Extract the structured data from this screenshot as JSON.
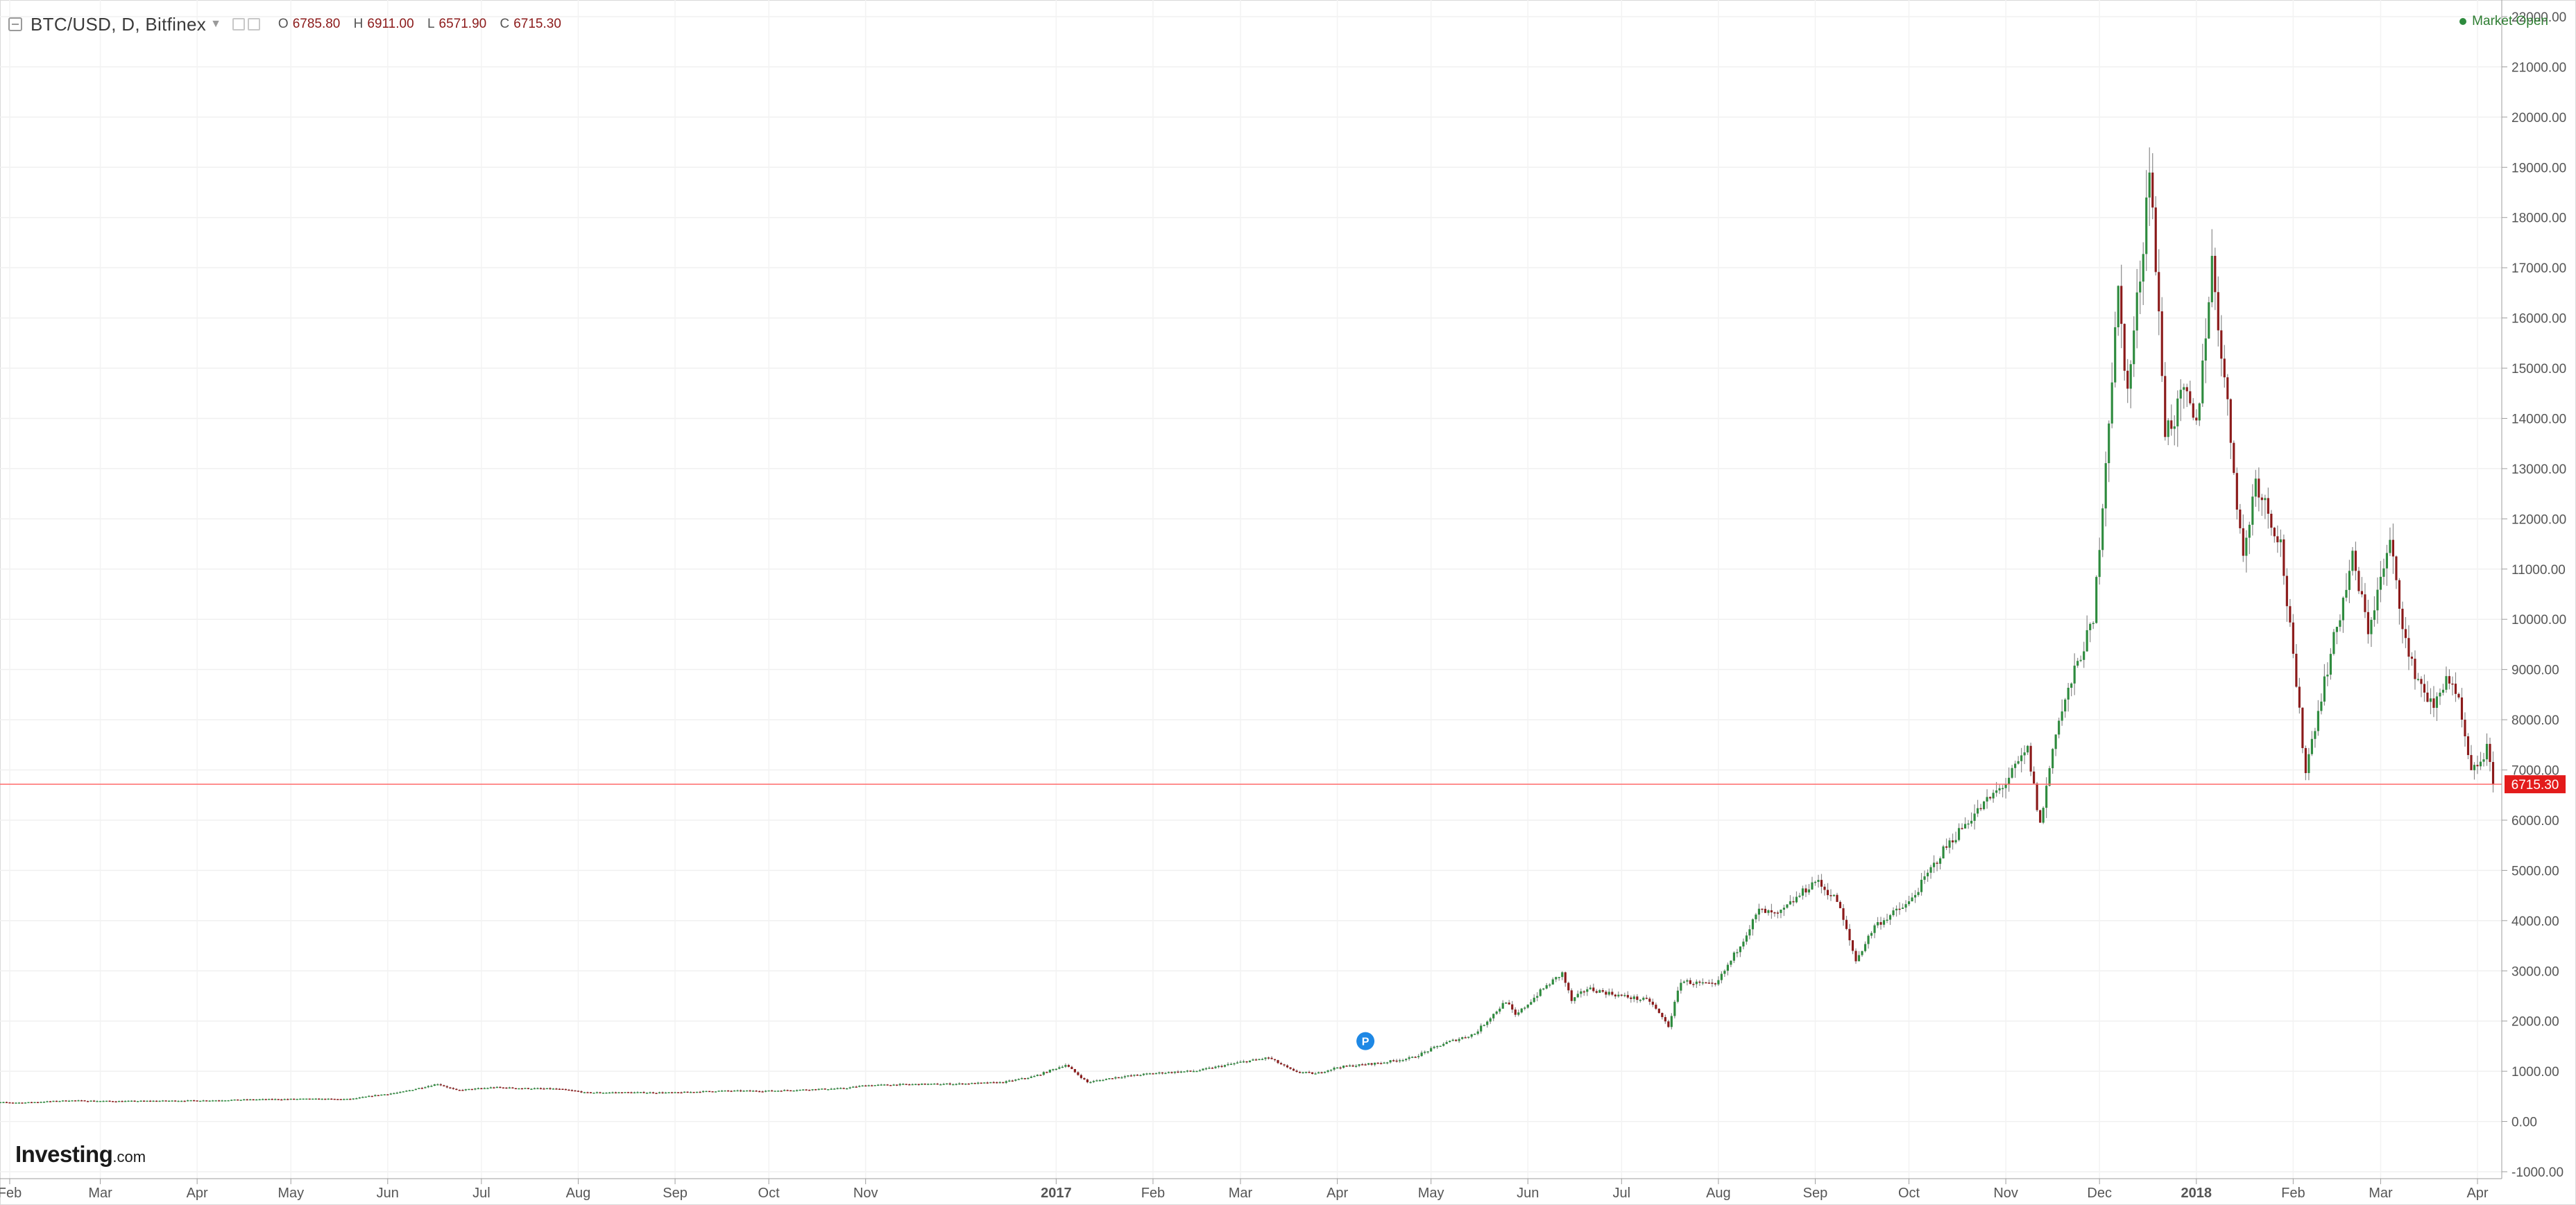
{
  "header": {
    "symbol": "BTC/USD, D, Bitfinex",
    "ohlc": [
      {
        "key": "O",
        "value": "6785.80"
      },
      {
        "key": "H",
        "value": "6911.00"
      },
      {
        "key": "L",
        "value": "6571.90"
      },
      {
        "key": "C",
        "value": "6715.30"
      }
    ],
    "market_status": "Market Open"
  },
  "logo": {
    "brand": "Investing",
    "domain": ".com"
  },
  "colors": {
    "up": "#2e8b3e",
    "down": "#8b1a1a",
    "price_line": "#ff6b6b",
    "badge": "#e31b1b"
  },
  "chart_data": {
    "type": "candlestick",
    "y_ticks": [
      "-1000.00",
      "0.00",
      "1000.00",
      "2000.00",
      "3000.00",
      "4000.00",
      "5000.00",
      "6000.00",
      "7000.00",
      "8000.00",
      "9000.00",
      "10000.00",
      "11000.00",
      "12000.00",
      "13000.00",
      "14000.00",
      "15000.00",
      "16000.00",
      "17000.00",
      "18000.00",
      "19000.00",
      "20000.00",
      "21000.00",
      "22000.00"
    ],
    "ylim": [
      -1000,
      22000
    ],
    "x_ticks": [
      {
        "label": "Feb",
        "date": "2016-02-01",
        "bold": false
      },
      {
        "label": "Mar",
        "date": "2016-03-01",
        "bold": false
      },
      {
        "label": "Apr",
        "date": "2016-04-01",
        "bold": false
      },
      {
        "label": "May",
        "date": "2016-05-01",
        "bold": false
      },
      {
        "label": "Jun",
        "date": "2016-06-01",
        "bold": false
      },
      {
        "label": "Jul",
        "date": "2016-07-01",
        "bold": false
      },
      {
        "label": "Aug",
        "date": "2016-08-01",
        "bold": false
      },
      {
        "label": "Sep",
        "date": "2016-09-01",
        "bold": false
      },
      {
        "label": "Oct",
        "date": "2016-10-01",
        "bold": false
      },
      {
        "label": "Nov",
        "date": "2016-11-01",
        "bold": false
      },
      {
        "label": "2017",
        "date": "2017-01-01",
        "bold": true
      },
      {
        "label": "Feb",
        "date": "2017-02-01",
        "bold": false
      },
      {
        "label": "Mar",
        "date": "2017-03-01",
        "bold": false
      },
      {
        "label": "Apr",
        "date": "2017-04-01",
        "bold": false
      },
      {
        "label": "May",
        "date": "2017-05-01",
        "bold": false
      },
      {
        "label": "Jun",
        "date": "2017-06-01",
        "bold": false
      },
      {
        "label": "Jul",
        "date": "2017-07-01",
        "bold": false
      },
      {
        "label": "Aug",
        "date": "2017-08-01",
        "bold": false
      },
      {
        "label": "Sep",
        "date": "2017-09-01",
        "bold": false
      },
      {
        "label": "Oct",
        "date": "2017-10-01",
        "bold": false
      },
      {
        "label": "Nov",
        "date": "2017-11-01",
        "bold": false
      },
      {
        "label": "Dec",
        "date": "2017-12-01",
        "bold": false
      },
      {
        "label": "2018",
        "date": "2018-01-01",
        "bold": true
      },
      {
        "label": "Feb",
        "date": "2018-02-01",
        "bold": false
      },
      {
        "label": "Mar",
        "date": "2018-03-01",
        "bold": false
      },
      {
        "label": "Apr",
        "date": "2018-04-01",
        "bold": false
      }
    ],
    "last_price": 6715.3,
    "last_price_label": "6715.30",
    "marker": {
      "label": "P",
      "date": "2017-04-10",
      "price": 1600
    },
    "series": [
      {
        "date": "2016-01-22",
        "close": 390
      },
      {
        "date": "2016-02-05",
        "close": 375
      },
      {
        "date": "2016-02-20",
        "close": 420
      },
      {
        "date": "2016-03-05",
        "close": 405
      },
      {
        "date": "2016-03-20",
        "close": 412
      },
      {
        "date": "2016-04-05",
        "close": 420
      },
      {
        "date": "2016-04-20",
        "close": 440
      },
      {
        "date": "2016-05-05",
        "close": 450
      },
      {
        "date": "2016-05-20",
        "close": 445
      },
      {
        "date": "2016-05-28",
        "close": 520
      },
      {
        "date": "2016-06-05",
        "close": 580
      },
      {
        "date": "2016-06-12",
        "close": 680
      },
      {
        "date": "2016-06-17",
        "close": 750
      },
      {
        "date": "2016-06-23",
        "close": 620
      },
      {
        "date": "2016-07-05",
        "close": 680
      },
      {
        "date": "2016-07-15",
        "close": 660
      },
      {
        "date": "2016-07-25",
        "close": 650
      },
      {
        "date": "2016-08-01",
        "close": 600
      },
      {
        "date": "2016-08-03",
        "close": 575
      },
      {
        "date": "2016-08-15",
        "close": 580
      },
      {
        "date": "2016-09-01",
        "close": 575
      },
      {
        "date": "2016-09-15",
        "close": 610
      },
      {
        "date": "2016-10-01",
        "close": 610
      },
      {
        "date": "2016-10-15",
        "close": 640
      },
      {
        "date": "2016-10-25",
        "close": 660
      },
      {
        "date": "2016-11-01",
        "close": 720
      },
      {
        "date": "2016-11-15",
        "close": 740
      },
      {
        "date": "2016-12-01",
        "close": 750
      },
      {
        "date": "2016-12-15",
        "close": 780
      },
      {
        "date": "2016-12-25",
        "close": 900
      },
      {
        "date": "2017-01-04",
        "close": 1130
      },
      {
        "date": "2017-01-11",
        "close": 780
      },
      {
        "date": "2017-01-20",
        "close": 880
      },
      {
        "date": "2017-02-01",
        "close": 960
      },
      {
        "date": "2017-02-15",
        "close": 1010
      },
      {
        "date": "2017-03-01",
        "close": 1180
      },
      {
        "date": "2017-03-10",
        "close": 1270
      },
      {
        "date": "2017-03-18",
        "close": 1000
      },
      {
        "date": "2017-03-25",
        "close": 950
      },
      {
        "date": "2017-04-01",
        "close": 1080
      },
      {
        "date": "2017-04-15",
        "close": 1170
      },
      {
        "date": "2017-04-25",
        "close": 1270
      },
      {
        "date": "2017-05-05",
        "close": 1550
      },
      {
        "date": "2017-05-15",
        "close": 1750
      },
      {
        "date": "2017-05-25",
        "close": 2400
      },
      {
        "date": "2017-05-28",
        "close": 2100
      },
      {
        "date": "2017-06-06",
        "close": 2650
      },
      {
        "date": "2017-06-12",
        "close": 2950
      },
      {
        "date": "2017-06-15",
        "close": 2400
      },
      {
        "date": "2017-06-20",
        "close": 2650
      },
      {
        "date": "2017-07-01",
        "close": 2500
      },
      {
        "date": "2017-07-10",
        "close": 2400
      },
      {
        "date": "2017-07-16",
        "close": 1900
      },
      {
        "date": "2017-07-20",
        "close": 2800
      },
      {
        "date": "2017-07-31",
        "close": 2700
      },
      {
        "date": "2017-08-05",
        "close": 3200
      },
      {
        "date": "2017-08-14",
        "close": 4200
      },
      {
        "date": "2017-08-20",
        "close": 4100
      },
      {
        "date": "2017-09-01",
        "close": 4800
      },
      {
        "date": "2017-09-08",
        "close": 4400
      },
      {
        "date": "2017-09-14",
        "close": 3200
      },
      {
        "date": "2017-09-20",
        "close": 3900
      },
      {
        "date": "2017-10-01",
        "close": 4350
      },
      {
        "date": "2017-10-12",
        "close": 5400
      },
      {
        "date": "2017-10-20",
        "close": 6000
      },
      {
        "date": "2017-11-01",
        "close": 6750
      },
      {
        "date": "2017-11-08",
        "close": 7400
      },
      {
        "date": "2017-11-12",
        "close": 5900
      },
      {
        "date": "2017-11-17",
        "close": 7800
      },
      {
        "date": "2017-11-26",
        "close": 9500
      },
      {
        "date": "2017-11-29",
        "close": 9900
      },
      {
        "date": "2017-12-07",
        "close": 16500
      },
      {
        "date": "2017-12-10",
        "close": 14500
      },
      {
        "date": "2017-12-15",
        "close": 17500
      },
      {
        "date": "2017-12-17",
        "close": 19200
      },
      {
        "date": "2017-12-22",
        "close": 13800
      },
      {
        "date": "2017-12-25",
        "close": 14000
      },
      {
        "date": "2017-12-28",
        "close": 14500
      },
      {
        "date": "2018-01-01",
        "close": 13800
      },
      {
        "date": "2018-01-06",
        "close": 17100
      },
      {
        "date": "2018-01-10",
        "close": 14800
      },
      {
        "date": "2018-01-16",
        "close": 11200
      },
      {
        "date": "2018-01-20",
        "close": 12800
      },
      {
        "date": "2018-01-28",
        "close": 11500
      },
      {
        "date": "2018-02-01",
        "close": 9200
      },
      {
        "date": "2018-02-05",
        "close": 7000
      },
      {
        "date": "2018-02-10",
        "close": 8500
      },
      {
        "date": "2018-02-20",
        "close": 11200
      },
      {
        "date": "2018-02-25",
        "close": 9800
      },
      {
        "date": "2018-03-04",
        "close": 11500
      },
      {
        "date": "2018-03-10",
        "close": 9200
      },
      {
        "date": "2018-03-18",
        "close": 8200
      },
      {
        "date": "2018-03-22",
        "close": 8900
      },
      {
        "date": "2018-03-26",
        "close": 8300
      },
      {
        "date": "2018-03-30",
        "close": 6900
      },
      {
        "date": "2018-04-04",
        "close": 7400
      },
      {
        "date": "2018-04-06",
        "close": 6715
      }
    ]
  }
}
